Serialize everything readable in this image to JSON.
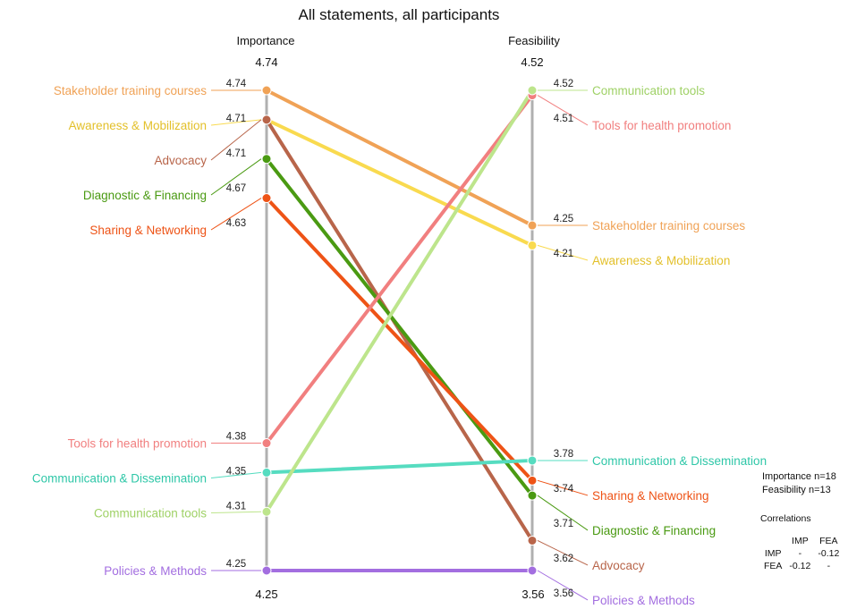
{
  "chart_data": {
    "type": "slope",
    "title": "All statements, all participants",
    "axes": [
      {
        "name": "Importance",
        "max": 4.74,
        "min": 4.25,
        "max_label": "4.74",
        "min_label": "4.25"
      },
      {
        "name": "Feasibility",
        "max": 4.52,
        "min": 3.56,
        "max_label": "4.52",
        "min_label": "3.56"
      }
    ],
    "series": [
      {
        "name": "Stakeholder training courses",
        "importance": 4.74,
        "feasibility": 4.25,
        "imp_label": "4.74",
        "fea_label": "4.25",
        "color": "#f0a256"
      },
      {
        "name": "Awareness & Mobilization",
        "importance": 4.71,
        "feasibility": 4.21,
        "imp_label": "4.71",
        "fea_label": "4.21",
        "color": "#f9da4f"
      },
      {
        "name": "Advocacy",
        "importance": 4.71,
        "feasibility": 3.62,
        "imp_label": "4.71",
        "fea_label": "3.62",
        "color": "#b8654a"
      },
      {
        "name": "Diagnostic & Financing",
        "importance": 4.67,
        "feasibility": 3.71,
        "imp_label": "4.67",
        "fea_label": "3.71",
        "color": "#4a9a12"
      },
      {
        "name": "Sharing & Networking",
        "importance": 4.63,
        "feasibility": 3.74,
        "imp_label": "4.63",
        "fea_label": "3.74",
        "color": "#ee5316"
      },
      {
        "name": "Tools for health promotion",
        "importance": 4.38,
        "feasibility": 4.51,
        "imp_label": "4.38",
        "fea_label": "4.51",
        "color": "#f17f7f"
      },
      {
        "name": "Communication & Dissemination",
        "importance": 4.35,
        "feasibility": 3.78,
        "imp_label": "4.35",
        "fea_label": "3.78",
        "color": "#56dcc0"
      },
      {
        "name": "Communication tools",
        "importance": 4.31,
        "feasibility": 4.52,
        "imp_label": "4.31",
        "fea_label": "4.52",
        "color": "#bde58c"
      },
      {
        "name": "Policies & Methods",
        "importance": 4.25,
        "feasibility": 3.56,
        "imp_label": "4.25",
        "fea_label": "3.56",
        "color": "#a36ee0"
      }
    ]
  },
  "notes": {
    "importance_n": "Importance n=18",
    "feasibility_n": "Feasibility n=13",
    "correlations_title": "Correlations",
    "correlations": {
      "header": [
        "",
        "IMP",
        "FEA"
      ],
      "rows": [
        [
          "IMP",
          "-",
          "-0.12"
        ],
        [
          "FEA",
          "-0.12",
          "-"
        ]
      ]
    }
  }
}
